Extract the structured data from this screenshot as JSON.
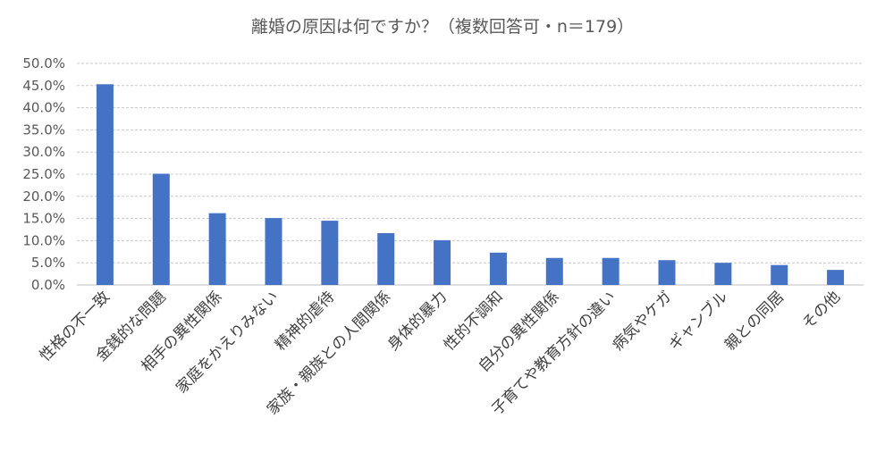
{
  "chart_data": {
    "type": "bar",
    "title": "離婚の原因は何ですか？（複数回答可・n＝179）",
    "categories": [
      "性格の不一致",
      "金銭的な問題",
      "相手の異性関係",
      "家庭をかえりみない",
      "精神的虐待",
      "家族・親族との人間関係",
      "身体的暴力",
      "性的不調和",
      "自分の異性関係",
      "子育てや教育方針の違い",
      "病気やケガ",
      "ギャンブル",
      "親との同居",
      "その他"
    ],
    "values": [
      45.3,
      25.1,
      16.2,
      15.1,
      14.5,
      11.7,
      10.1,
      7.3,
      6.1,
      6.1,
      5.6,
      5.0,
      4.5,
      3.4
    ],
    "yticks": [
      "0.0%",
      "5.0%",
      "10.0%",
      "15.0%",
      "20.0%",
      "25.0%",
      "30.0%",
      "35.0%",
      "40.0%",
      "45.0%",
      "50.0%"
    ],
    "ylim": [
      0,
      50
    ],
    "grid": true,
    "bar_color": "#4472c4"
  }
}
